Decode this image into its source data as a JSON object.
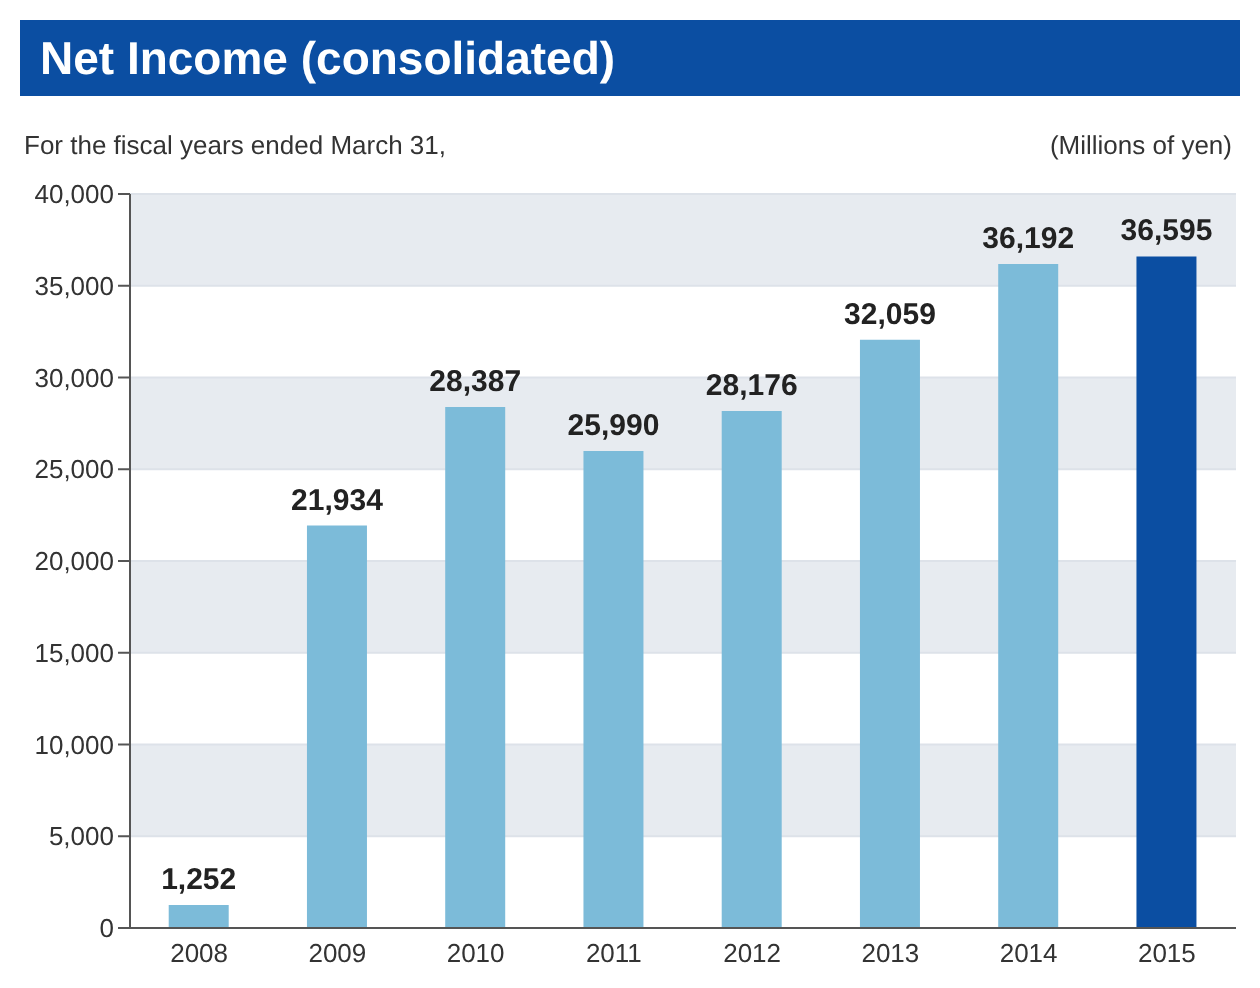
{
  "chart_data": {
    "type": "bar",
    "title": "Net Income (consolidated)",
    "subtitle": "For the fiscal years ended March 31,",
    "ylabel": "(Millions of yen)",
    "categories": [
      "2008",
      "2009",
      "2010",
      "2011",
      "2012",
      "2013",
      "2014",
      "2015"
    ],
    "values": [
      1252,
      21934,
      28387,
      25990,
      28176,
      32059,
      36192,
      36595
    ],
    "value_labels": [
      "1,252",
      "21,934",
      "28,387",
      "25,990",
      "28,176",
      "32,059",
      "36,192",
      "36,595"
    ],
    "colors": [
      "#7cbbd9",
      "#7cbbd9",
      "#7cbbd9",
      "#7cbbd9",
      "#7cbbd9",
      "#7cbbd9",
      "#7cbbd9",
      "#0b4ea2"
    ],
    "ylim": [
      0,
      40000
    ],
    "yticks": [
      0,
      {
        "value": 5000,
        "label": "5,000"
      },
      {
        "value": 10000,
        "label": "10,000"
      },
      {
        "value": 15000,
        "label": "15,000"
      },
      {
        "value": 20000,
        "label": "20,000"
      },
      {
        "value": 25000,
        "label": "25,000"
      },
      {
        "value": 30000,
        "label": "30,000"
      },
      {
        "value": 35000,
        "label": "35,000"
      },
      {
        "value": 40000,
        "label": "40,000"
      }
    ],
    "grid": "y"
  }
}
